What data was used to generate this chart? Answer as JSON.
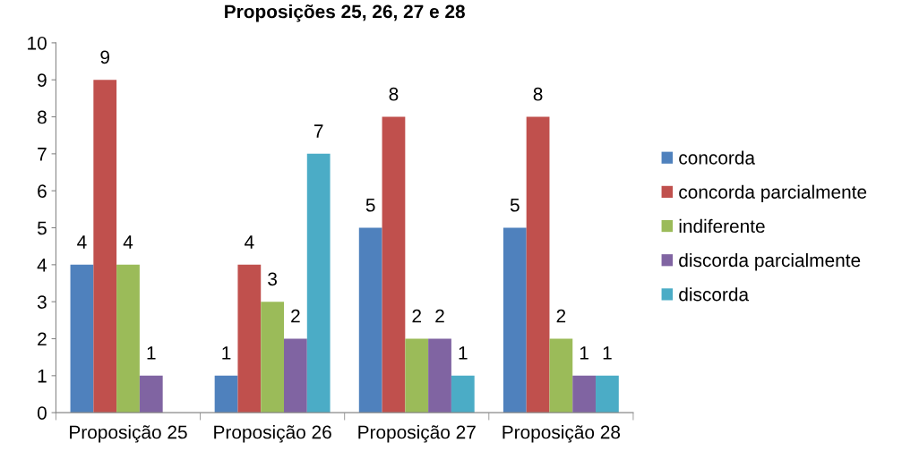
{
  "chart_data": {
    "type": "bar",
    "title": "Proposições 25, 26, 27 e 28",
    "categories": [
      "Proposição 25",
      "Proposição 26",
      "Proposição 27",
      "Proposição 28"
    ],
    "series": [
      {
        "name": "concorda",
        "color": "#4f81bd",
        "values": [
          4,
          1,
          5,
          5
        ]
      },
      {
        "name": "concorda parcialmente",
        "color": "#c0504d",
        "values": [
          9,
          4,
          8,
          8
        ]
      },
      {
        "name": "indiferente",
        "color": "#9bbb59",
        "values": [
          4,
          3,
          2,
          2
        ]
      },
      {
        "name": "discorda parcialmente",
        "color": "#8064a2",
        "values": [
          1,
          2,
          2,
          1
        ]
      },
      {
        "name": "discorda",
        "color": "#4bacc6",
        "values": [
          null,
          7,
          1,
          1
        ]
      }
    ],
    "ylim": [
      0,
      10
    ],
    "yticks": [
      0,
      1,
      2,
      3,
      4,
      5,
      6,
      7,
      8,
      9,
      10
    ],
    "grid": false,
    "legend": "right",
    "data_labels": true
  }
}
